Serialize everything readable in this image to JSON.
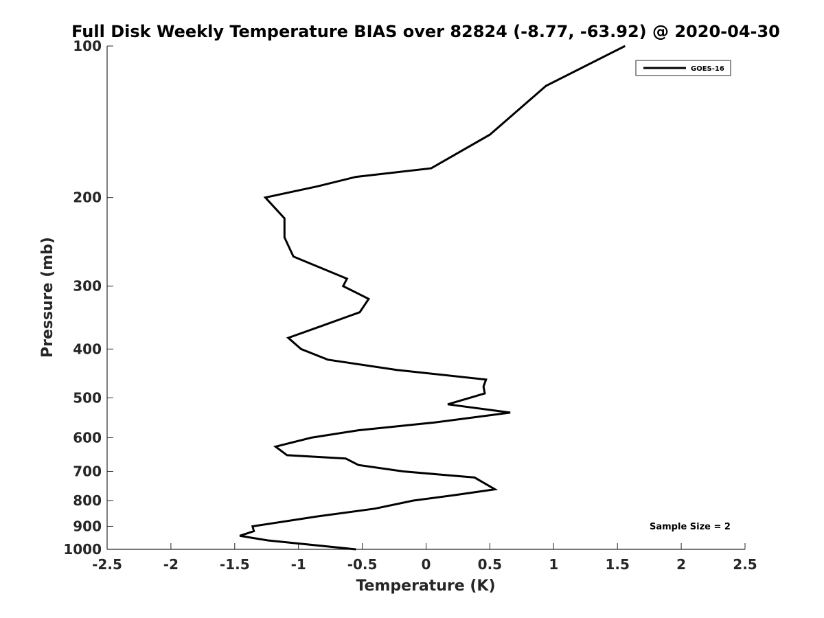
{
  "chart_data": {
    "type": "line",
    "title": "Full Disk Weekly Temperature BIAS over 82824 (-8.77, -63.92) @ 2020-04-30",
    "xlabel": "Temperature (K)",
    "ylabel": "Pressure (mb)",
    "xlim": [
      -2.5,
      2.5
    ],
    "ylim": [
      100,
      1000
    ],
    "y_scale": "log",
    "y_reversed": true,
    "grid": false,
    "legend_position": "top-right",
    "x_ticks": [
      -2.5,
      -2,
      -1.5,
      -1,
      -0.5,
      0,
      0.5,
      1,
      1.5,
      2,
      2.5
    ],
    "x_tick_labels": [
      "-2.5",
      "-2",
      "-1.5",
      "-1",
      "-0.5",
      "0",
      "0.5",
      "1",
      "1.5",
      "2",
      "2.5"
    ],
    "y_ticks": [
      100,
      200,
      300,
      400,
      500,
      600,
      700,
      800,
      900,
      1000
    ],
    "y_tick_labels": [
      "100",
      "200",
      "300",
      "400",
      "500",
      "600",
      "700",
      "800",
      "900",
      "1000"
    ],
    "series": [
      {
        "name": "GOES-16",
        "color": "#000000",
        "points": [
          {
            "x": 1.56,
            "y": 100
          },
          {
            "x": 0.94,
            "y": 120
          },
          {
            "x": 0.5,
            "y": 150
          },
          {
            "x": 0.04,
            "y": 175
          },
          {
            "x": -0.55,
            "y": 182
          },
          {
            "x": -0.85,
            "y": 190
          },
          {
            "x": -1.26,
            "y": 200
          },
          {
            "x": -1.11,
            "y": 220
          },
          {
            "x": -1.11,
            "y": 240
          },
          {
            "x": -1.04,
            "y": 262
          },
          {
            "x": -0.62,
            "y": 290
          },
          {
            "x": -0.65,
            "y": 300
          },
          {
            "x": -0.45,
            "y": 318
          },
          {
            "x": -0.52,
            "y": 338
          },
          {
            "x": -0.82,
            "y": 360
          },
          {
            "x": -1.08,
            "y": 380
          },
          {
            "x": -0.98,
            "y": 400
          },
          {
            "x": -0.77,
            "y": 420
          },
          {
            "x": -0.23,
            "y": 440
          },
          {
            "x": 0.47,
            "y": 460
          },
          {
            "x": 0.45,
            "y": 475
          },
          {
            "x": 0.46,
            "y": 490
          },
          {
            "x": 0.17,
            "y": 515
          },
          {
            "x": 0.66,
            "y": 535
          },
          {
            "x": 0.06,
            "y": 560
          },
          {
            "x": -0.53,
            "y": 580
          },
          {
            "x": -0.9,
            "y": 600
          },
          {
            "x": -1.18,
            "y": 625
          },
          {
            "x": -1.09,
            "y": 650
          },
          {
            "x": -0.63,
            "y": 660
          },
          {
            "x": -0.53,
            "y": 680
          },
          {
            "x": -0.18,
            "y": 700
          },
          {
            "x": 0.38,
            "y": 720
          },
          {
            "x": 0.54,
            "y": 760
          },
          {
            "x": 0.23,
            "y": 780
          },
          {
            "x": -0.1,
            "y": 800
          },
          {
            "x": -0.4,
            "y": 830
          },
          {
            "x": -0.85,
            "y": 860
          },
          {
            "x": -1.36,
            "y": 900
          },
          {
            "x": -1.35,
            "y": 920
          },
          {
            "x": -1.46,
            "y": 940
          },
          {
            "x": -1.24,
            "y": 960
          },
          {
            "x": -0.55,
            "y": 1000
          }
        ]
      }
    ],
    "annotations": [
      "Sample Size = 2"
    ]
  }
}
